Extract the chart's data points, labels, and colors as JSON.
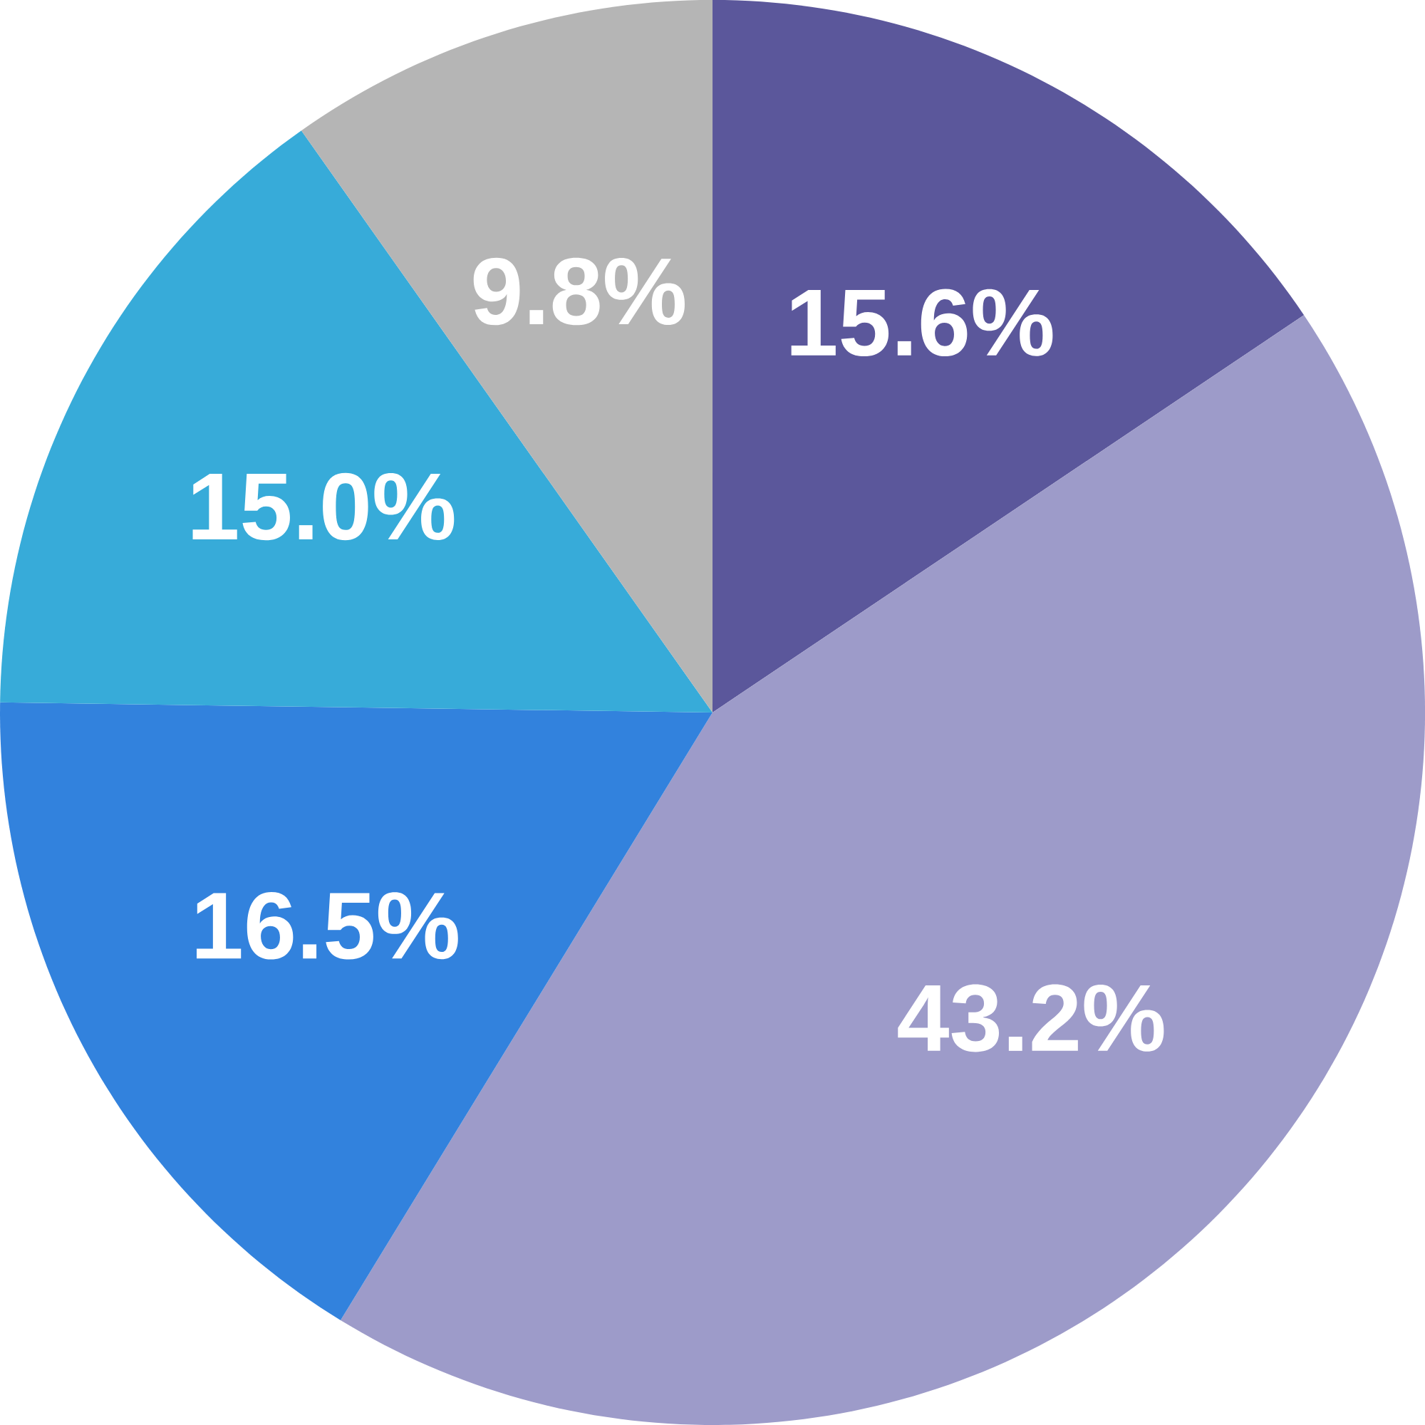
{
  "chart_data": {
    "type": "pie",
    "categories": [
      null,
      null,
      null,
      null,
      null
    ],
    "values": [
      15.6,
      43.2,
      16.5,
      15.0,
      9.8
    ],
    "colors": [
      "#5b579b",
      "#9d9bc9",
      "#3282dd",
      "#37abd9",
      "#b5b5b5"
    ],
    "value_labels": [
      "15.6%",
      "43.2%",
      "16.5%",
      "15.0%",
      "9.8%"
    ]
  }
}
